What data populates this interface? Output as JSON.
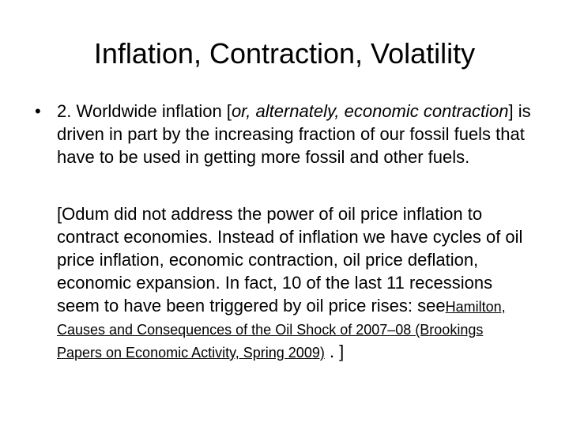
{
  "slide": {
    "title": "Inflation, Contraction, Volatility",
    "bullet": {
      "before": "2. Worldwide inflation [",
      "italic": "or, alternately, economic contraction",
      "after": "] is driven in part by the increasing fraction of our fossil fuels that have to be used in getting more fossil and other fuels."
    },
    "note": {
      "text": "[Odum did not address the power of oil price inflation to contract economies.  Instead of inflation we have cycles of oil price inflation, economic contraction, oil price deflation, economic expansion.  In fact, 10 of the last 11 recessions seem to have been triggered by oil price rises: see",
      "link": "Hamilton, Causes and Consequences of the Oil Shock of 2007–08 (Brookings Papers on Economic Activity, Spring 2009)",
      "after": " . ]"
    }
  }
}
